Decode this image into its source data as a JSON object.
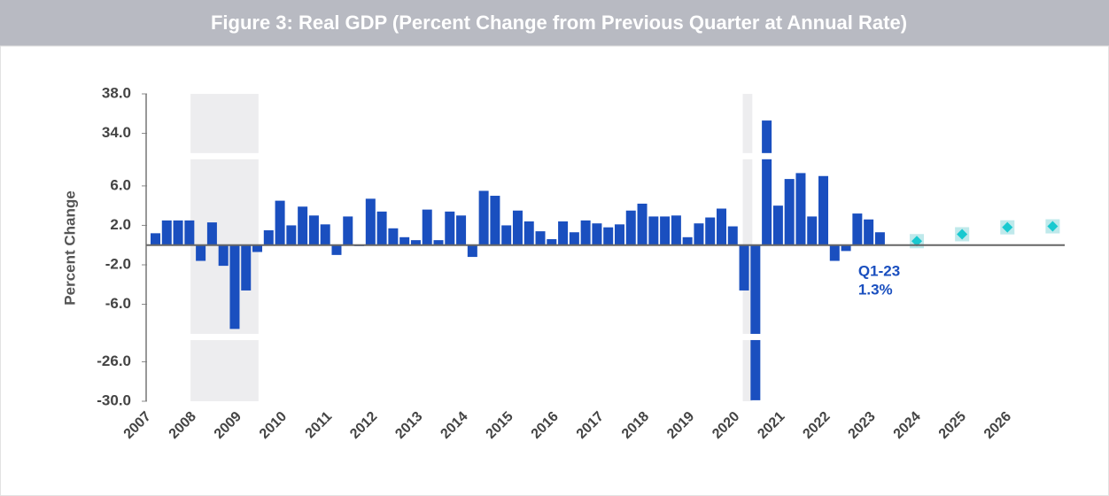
{
  "chart_data": {
    "type": "bar",
    "title": "Figure 3: Real GDP (Percent Change from Previous Quarter at Annual Rate)",
    "y_label": "Percent Change",
    "categories": [
      "2007",
      null,
      null,
      null,
      "2008",
      null,
      null,
      null,
      "2009",
      null,
      null,
      null,
      "2010",
      null,
      null,
      null,
      "2011",
      null,
      null,
      null,
      "2012",
      null,
      null,
      null,
      "2013",
      null,
      null,
      null,
      "2014",
      null,
      null,
      null,
      "2015",
      null,
      null,
      null,
      "2016",
      null,
      null,
      null,
      "2017",
      null,
      null,
      null,
      "2018",
      null,
      null,
      null,
      "2019",
      null,
      null,
      null,
      "2020",
      null,
      null,
      null,
      "2021",
      null,
      null,
      null,
      "2022",
      null,
      null,
      null,
      "2023",
      null,
      null,
      null,
      "2024",
      null,
      null,
      null,
      "2025",
      null,
      null,
      null,
      "2026",
      null,
      null,
      null,
      null
    ],
    "series": [
      {
        "type": "bar",
        "color": "#1a4fbf",
        "values": [
          1.2,
          2.5,
          2.5,
          2.5,
          -1.6,
          2.3,
          -2.1,
          -8.5,
          -4.6,
          -0.7,
          1.5,
          4.5,
          2.0,
          3.9,
          3.0,
          2.1,
          -1.0,
          2.9,
          -0.1,
          4.7,
          3.4,
          1.7,
          0.8,
          0.5,
          3.6,
          0.5,
          3.4,
          3.0,
          -1.2,
          5.5,
          5.0,
          2.0,
          3.5,
          2.4,
          1.4,
          0.6,
          2.4,
          1.3,
          2.5,
          2.2,
          1.8,
          2.1,
          3.5,
          4.2,
          2.9,
          2.9,
          3.0,
          0.8,
          2.2,
          2.8,
          3.7,
          1.9,
          -4.6,
          -29.9,
          35.3,
          4.0,
          6.7,
          7.3,
          2.9,
          7.0,
          -1.6,
          -0.6,
          3.2,
          2.6,
          1.3,
          null,
          null,
          null,
          null,
          null,
          null,
          null,
          null,
          null,
          null,
          null,
          null,
          null,
          null,
          null,
          null
        ]
      },
      {
        "type": "diamond",
        "color": "#19c9d0",
        "values": [
          null,
          null,
          null,
          null,
          null,
          null,
          null,
          null,
          null,
          null,
          null,
          null,
          null,
          null,
          null,
          null,
          null,
          null,
          null,
          null,
          null,
          null,
          null,
          null,
          null,
          null,
          null,
          null,
          null,
          null,
          null,
          null,
          null,
          null,
          null,
          null,
          null,
          null,
          null,
          null,
          null,
          null,
          null,
          null,
          null,
          null,
          null,
          null,
          null,
          null,
          null,
          null,
          null,
          null,
          null,
          null,
          null,
          null,
          null,
          null,
          null,
          null,
          null,
          null,
          null,
          null,
          null,
          null,
          0.4,
          null,
          null,
          null,
          1.1,
          null,
          null,
          null,
          1.8,
          null,
          null,
          null,
          1.9
        ]
      }
    ],
    "annotation": {
      "index": 64,
      "label": "Q1-23",
      "value_label": "1.3%"
    },
    "shading": [
      [
        4,
        9
      ],
      [
        52,
        52
      ]
    ],
    "ylim": [
      -30,
      38
    ],
    "y_breaks": [
      [
        -23.8,
        -9
      ],
      [
        8.7,
        32
      ]
    ],
    "yticks": [
      {
        "value": 38,
        "label": "38.0"
      },
      {
        "value": 34,
        "label": "34.0"
      },
      {
        "value": 6,
        "label": "6.0"
      },
      {
        "value": 2,
        "label": "2.0"
      },
      {
        "value": -2,
        "label": "-2.0"
      },
      {
        "value": -6,
        "label": "-6.0"
      },
      {
        "value": -26,
        "label": "-26.0"
      },
      {
        "value": -30,
        "label": "-30.0"
      }
    ]
  }
}
